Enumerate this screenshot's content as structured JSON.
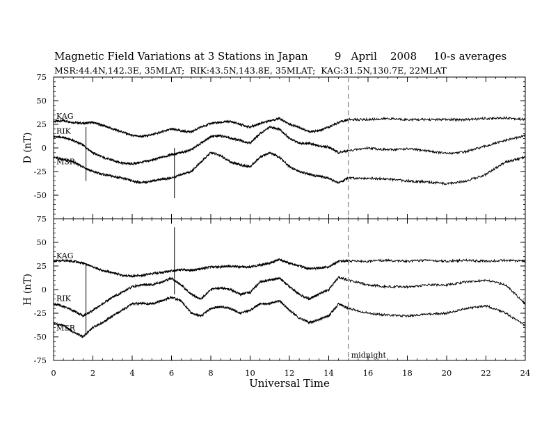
{
  "header": {
    "title_main": "Magnetic Field Variations at 3 Stations in Japan",
    "day": "9",
    "month": "April",
    "year": "2008",
    "averaging": "10-s averages",
    "stations_line": "MSR:44.4N,142.3E, 35MLAT;  RIK:43.5N,143.8E, 35MLAT;  KAG:31.5N,130.7E, 22MLAT"
  },
  "chart_data": {
    "type": "line",
    "xlabel": "Universal Time",
    "xlim": [
      0,
      24
    ],
    "x_ticks": [
      0,
      2,
      4,
      6,
      8,
      10,
      12,
      14,
      16,
      18,
      20,
      22,
      24
    ],
    "midnight_marker": {
      "x": 15,
      "label": "midnight",
      "style": "dashed",
      "color": "#999999"
    },
    "panels": [
      {
        "id": "D",
        "ylabel": "D (nT)",
        "ylim": [
          -75,
          75
        ],
        "y_ticks": [
          75,
          50,
          25,
          0,
          -25,
          -50,
          -75
        ],
        "series": [
          {
            "name": "KAG",
            "points": [
              [
                0,
                28
              ],
              [
                0.5,
                29
              ],
              [
                1,
                27
              ],
              [
                1.5,
                26
              ],
              [
                2,
                27
              ],
              [
                2.5,
                24
              ],
              [
                3,
                20
              ],
              [
                3.5,
                17
              ],
              [
                4,
                13
              ],
              [
                4.5,
                12
              ],
              [
                5,
                14
              ],
              [
                5.5,
                17
              ],
              [
                6,
                20
              ],
              [
                6.5,
                18
              ],
              [
                7,
                17
              ],
              [
                7.5,
                22
              ],
              [
                8,
                26
              ],
              [
                8.5,
                27
              ],
              [
                9,
                28
              ],
              [
                9.5,
                25
              ],
              [
                10,
                22
              ],
              [
                10.5,
                26
              ],
              [
                11,
                29
              ],
              [
                11.5,
                31
              ],
              [
                12,
                25
              ],
              [
                12.5,
                22
              ],
              [
                13,
                17
              ],
              [
                13.5,
                18
              ],
              [
                14,
                22
              ],
              [
                14.5,
                27
              ],
              [
                15,
                30
              ],
              [
                16,
                30
              ],
              [
                17,
                31
              ],
              [
                18,
                30
              ],
              [
                19,
                30
              ],
              [
                20,
                30
              ],
              [
                21,
                30
              ],
              [
                22,
                31
              ],
              [
                23,
                32
              ],
              [
                24,
                30
              ]
            ]
          },
          {
            "name": "RIK",
            "points": [
              [
                0,
                12
              ],
              [
                0.5,
                11
              ],
              [
                1,
                8
              ],
              [
                1.5,
                3
              ],
              [
                2,
                -5
              ],
              [
                2.5,
                -10
              ],
              [
                3,
                -13
              ],
              [
                3.5,
                -16
              ],
              [
                4,
                -17
              ],
              [
                4.5,
                -15
              ],
              [
                5,
                -13
              ],
              [
                5.5,
                -10
              ],
              [
                6,
                -7
              ],
              [
                6.5,
                -5
              ],
              [
                7,
                -2
              ],
              [
                7.5,
                5
              ],
              [
                8,
                12
              ],
              [
                8.5,
                13
              ],
              [
                9,
                10
              ],
              [
                9.5,
                8
              ],
              [
                10,
                5
              ],
              [
                10.5,
                15
              ],
              [
                11,
                22
              ],
              [
                11.5,
                20
              ],
              [
                12,
                10
              ],
              [
                12.5,
                5
              ],
              [
                13,
                5
              ],
              [
                13.5,
                2
              ],
              [
                14,
                1
              ],
              [
                14.5,
                -5
              ],
              [
                15,
                -3
              ],
              [
                16,
                0
              ],
              [
                17,
                -2
              ],
              [
                18,
                -1
              ],
              [
                19,
                -3
              ],
              [
                20,
                -6
              ],
              [
                21,
                -4
              ],
              [
                22,
                2
              ],
              [
                23,
                8
              ],
              [
                24,
                13
              ]
            ]
          },
          {
            "name": "MSR",
            "points": [
              [
                0,
                -10
              ],
              [
                0.5,
                -12
              ],
              [
                1,
                -15
              ],
              [
                1.5,
                -20
              ],
              [
                2,
                -25
              ],
              [
                2.5,
                -28
              ],
              [
                3,
                -30
              ],
              [
                3.5,
                -32
              ],
              [
                4,
                -35
              ],
              [
                4.5,
                -37
              ],
              [
                5,
                -35
              ],
              [
                5.5,
                -33
              ],
              [
                6,
                -32
              ],
              [
                6.5,
                -28
              ],
              [
                7,
                -25
              ],
              [
                7.5,
                -15
              ],
              [
                8,
                -5
              ],
              [
                8.5,
                -8
              ],
              [
                9,
                -15
              ],
              [
                9.5,
                -18
              ],
              [
                10,
                -20
              ],
              [
                10.5,
                -10
              ],
              [
                11,
                -5
              ],
              [
                11.5,
                -10
              ],
              [
                12,
                -20
              ],
              [
                12.5,
                -25
              ],
              [
                13,
                -28
              ],
              [
                13.5,
                -30
              ],
              [
                14,
                -32
              ],
              [
                14.5,
                -37
              ],
              [
                15,
                -32
              ],
              [
                16,
                -32
              ],
              [
                17,
                -33
              ],
              [
                18,
                -35
              ],
              [
                19,
                -36
              ],
              [
                20,
                -38
              ],
              [
                21,
                -35
              ],
              [
                22,
                -28
              ],
              [
                23,
                -15
              ],
              [
                24,
                -10
              ]
            ]
          }
        ],
        "labels": [
          "KAG",
          "RIK",
          "MSR"
        ]
      },
      {
        "id": "H",
        "ylabel": "H (nT)",
        "ylim": [
          -75,
          75
        ],
        "y_ticks": [
          75,
          50,
          25,
          0,
          -25,
          -50,
          -75
        ],
        "series": [
          {
            "name": "KAG",
            "points": [
              [
                0,
                30
              ],
              [
                0.5,
                31
              ],
              [
                1,
                30
              ],
              [
                1.5,
                28
              ],
              [
                2,
                24
              ],
              [
                2.5,
                20
              ],
              [
                3,
                18
              ],
              [
                3.5,
                15
              ],
              [
                4,
                14
              ],
              [
                4.5,
                15
              ],
              [
                5,
                17
              ],
              [
                5.5,
                18
              ],
              [
                6,
                20
              ],
              [
                6.5,
                21
              ],
              [
                7,
                20
              ],
              [
                7.5,
                22
              ],
              [
                8,
                24
              ],
              [
                8.5,
                24
              ],
              [
                9,
                25
              ],
              [
                9.5,
                24
              ],
              [
                10,
                24
              ],
              [
                10.5,
                26
              ],
              [
                11,
                28
              ],
              [
                11.5,
                32
              ],
              [
                12,
                28
              ],
              [
                12.5,
                25
              ],
              [
                13,
                22
              ],
              [
                13.5,
                23
              ],
              [
                14,
                24
              ],
              [
                14.5,
                30
              ],
              [
                15,
                30
              ],
              [
                16,
                30
              ],
              [
                17,
                31
              ],
              [
                18,
                30
              ],
              [
                19,
                31
              ],
              [
                20,
                30
              ],
              [
                21,
                31
              ],
              [
                22,
                30
              ],
              [
                23,
                31
              ],
              [
                24,
                30
              ]
            ]
          },
          {
            "name": "RIK",
            "points": [
              [
                0,
                -15
              ],
              [
                0.5,
                -18
              ],
              [
                1,
                -22
              ],
              [
                1.5,
                -28
              ],
              [
                2,
                -22
              ],
              [
                2.5,
                -15
              ],
              [
                3,
                -8
              ],
              [
                3.5,
                -3
              ],
              [
                4,
                3
              ],
              [
                4.5,
                5
              ],
              [
                5,
                5
              ],
              [
                5.5,
                8
              ],
              [
                6,
                12
              ],
              [
                6.5,
                5
              ],
              [
                7,
                -5
              ],
              [
                7.5,
                -10
              ],
              [
                8,
                0
              ],
              [
                8.5,
                2
              ],
              [
                9,
                0
              ],
              [
                9.5,
                -5
              ],
              [
                10,
                -3
              ],
              [
                10.5,
                8
              ],
              [
                11,
                10
              ],
              [
                11.5,
                12
              ],
              [
                12,
                3
              ],
              [
                12.5,
                -5
              ],
              [
                13,
                -10
              ],
              [
                13.5,
                -5
              ],
              [
                14,
                0
              ],
              [
                14.5,
                13
              ],
              [
                15,
                10
              ],
              [
                16,
                5
              ],
              [
                17,
                3
              ],
              [
                18,
                3
              ],
              [
                19,
                5
              ],
              [
                20,
                5
              ],
              [
                21,
                8
              ],
              [
                22,
                10
              ],
              [
                23,
                5
              ],
              [
                24,
                -15
              ]
            ]
          },
          {
            "name": "MSR",
            "points": [
              [
                0,
                -36
              ],
              [
                0.5,
                -38
              ],
              [
                1,
                -45
              ],
              [
                1.5,
                -50
              ],
              [
                2,
                -40
              ],
              [
                2.5,
                -35
              ],
              [
                3,
                -28
              ],
              [
                3.5,
                -22
              ],
              [
                4,
                -15
              ],
              [
                4.5,
                -15
              ],
              [
                5,
                -15
              ],
              [
                5.5,
                -12
              ],
              [
                6,
                -8
              ],
              [
                6.5,
                -12
              ],
              [
                7,
                -25
              ],
              [
                7.5,
                -28
              ],
              [
                8,
                -20
              ],
              [
                8.5,
                -18
              ],
              [
                9,
                -20
              ],
              [
                9.5,
                -25
              ],
              [
                10,
                -22
              ],
              [
                10.5,
                -15
              ],
              [
                11,
                -15
              ],
              [
                11.5,
                -12
              ],
              [
                12,
                -22
              ],
              [
                12.5,
                -30
              ],
              [
                13,
                -35
              ],
              [
                13.5,
                -32
              ],
              [
                14,
                -28
              ],
              [
                14.5,
                -15
              ],
              [
                15,
                -20
              ],
              [
                16,
                -25
              ],
              [
                17,
                -27
              ],
              [
                18,
                -28
              ],
              [
                19,
                -26
              ],
              [
                20,
                -25
              ],
              [
                21,
                -20
              ],
              [
                22,
                -17
              ],
              [
                23,
                -25
              ],
              [
                24,
                -38
              ]
            ]
          }
        ],
        "labels": [
          "KAG",
          "RIK",
          "MSR"
        ]
      }
    ],
    "spikes": [
      {
        "panel": "D",
        "x": 1.65,
        "y_from": -35,
        "y_to": 22
      },
      {
        "panel": "D",
        "x": 6.15,
        "y_from": -53,
        "y_to": 0
      },
      {
        "panel": "H",
        "x": 1.65,
        "y_from": -47,
        "y_to": 28
      },
      {
        "panel": "H",
        "x": 6.15,
        "y_from": -5,
        "y_to": 66
      }
    ]
  }
}
